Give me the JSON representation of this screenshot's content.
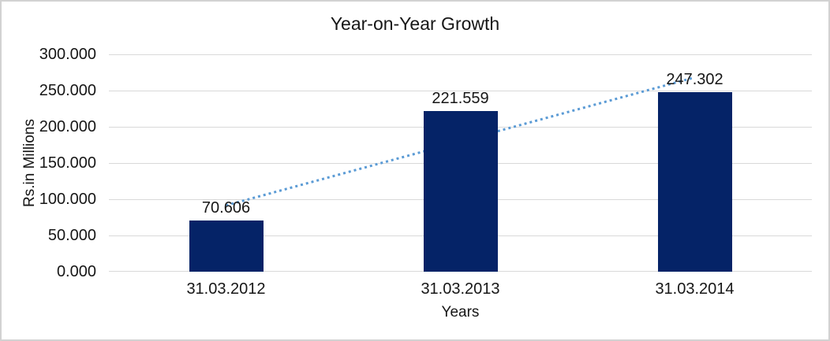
{
  "chart": {
    "title": "Year-on-Year Growth",
    "y_axis": {
      "title": "Rs.in Millions"
    },
    "x_axis": {
      "title": "Years"
    },
    "colors": {
      "bar": "#052367",
      "trendline": "#5b9bd5",
      "gridline": "#d9d9d9",
      "axis_line": "#d9d9d9",
      "text": "#161616",
      "border": "#d2d2d2",
      "background": "#ffffff"
    }
  },
  "chart_data": {
    "type": "bar",
    "title": "Year-on-Year Growth",
    "xlabel": "Years",
    "ylabel": "Rs.in Millions",
    "categories": [
      "31.03.2012",
      "31.03.2013",
      "31.03.2014"
    ],
    "values": [
      70.606,
      221.559,
      247.302
    ],
    "value_labels": [
      "70.606",
      "221.559",
      "247.302"
    ],
    "ylim": [
      0,
      300
    ],
    "yticks": [
      0,
      50,
      100,
      150,
      200,
      250,
      300
    ],
    "ytick_labels": [
      "0.000",
      "50.000",
      "100.000",
      "150.000",
      "200.000",
      "250.000",
      "300.000"
    ],
    "grid": true,
    "legend": false,
    "trendline": {
      "type": "linear",
      "style": "dotted",
      "start_value": 91.474,
      "end_value": 268.17
    }
  }
}
